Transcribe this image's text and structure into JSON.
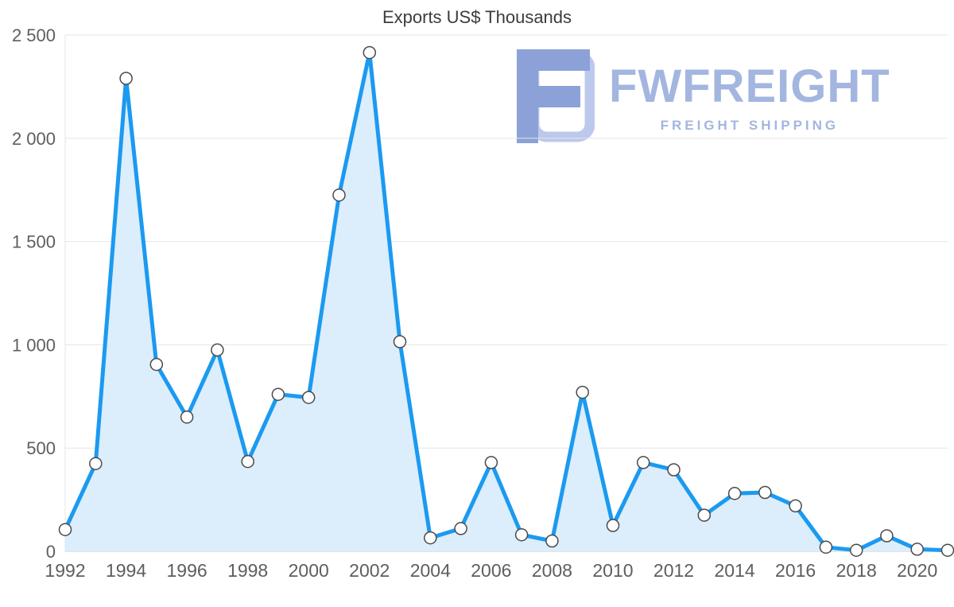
{
  "chart_data": {
    "type": "area",
    "title": "Exports US$ Thousands",
    "x": [
      1992,
      1993,
      1994,
      1995,
      1996,
      1997,
      1998,
      1999,
      2000,
      2001,
      2002,
      2003,
      2004,
      2005,
      2006,
      2007,
      2008,
      2009,
      2010,
      2011,
      2012,
      2013,
      2014,
      2015,
      2016,
      2017,
      2018,
      2019,
      2020,
      2021
    ],
    "values": [
      105,
      425,
      2290,
      905,
      650,
      975,
      435,
      760,
      745,
      1725,
      2415,
      1015,
      65,
      110,
      430,
      80,
      50,
      770,
      125,
      430,
      395,
      175,
      280,
      285,
      220,
      20,
      5,
      75,
      10,
      5
    ],
    "xlabel": "",
    "ylabel": "",
    "ylim": [
      0,
      2500
    ],
    "xlim": [
      1992,
      2021
    ],
    "grid": true,
    "legend": "none",
    "ytick_values": [
      0,
      500,
      1000,
      1500,
      2000,
      2500
    ],
    "ytick_labels": [
      "0",
      "500",
      "1 000",
      "1 500",
      "2 000",
      "2 500"
    ],
    "xtick_values": [
      1992,
      1994,
      1996,
      1998,
      2000,
      2002,
      2004,
      2006,
      2008,
      2010,
      2012,
      2014,
      2016,
      2018,
      2020
    ],
    "line_color": "#1b9af0",
    "area_fill_color": "#dcedfb",
    "marker_fill_color": "#ffffff",
    "marker_stroke_color": "#4a4a4a",
    "gridline_color": "#e6e6e6",
    "axis_line_color": "#c9c9c9",
    "tick_label_color": "#5e5e5e"
  },
  "watermark": {
    "brand": "FWFREIGHT",
    "tagline": "FREIGHT SHIPPING",
    "text_color": "#a3b6e0",
    "logo_color": "#8ba1d8",
    "logo_accent_color": "#bcc9ec"
  }
}
